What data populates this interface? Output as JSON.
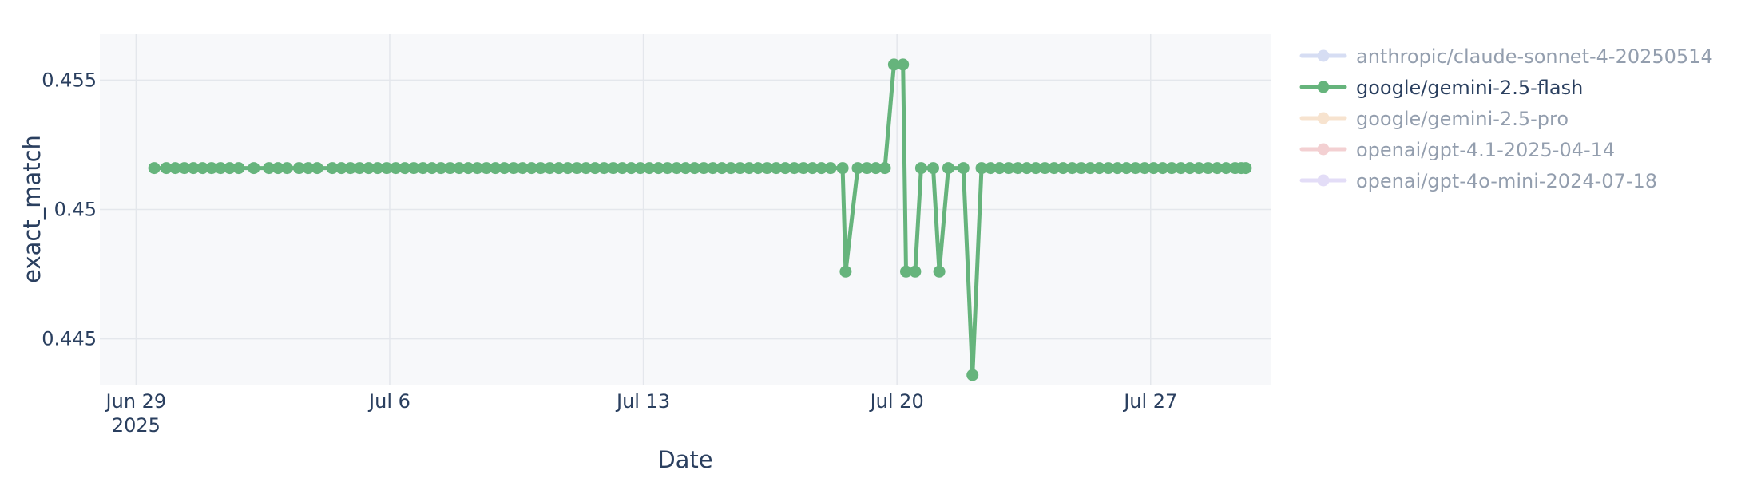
{
  "chart_data": {
    "type": "line",
    "xlabel": "Date",
    "ylabel": "exact_match",
    "xlim": [
      "2025-06-28T00:00",
      "2025-07-30T08:00"
    ],
    "ylim": [
      0.4432,
      0.4568
    ],
    "grid": true,
    "legend_position": "right",
    "x_ticks": [
      {
        "value": "2025-06-29",
        "label": "Jun 29",
        "sublabel": "2025"
      },
      {
        "value": "2025-07-06",
        "label": "Jul 6",
        "sublabel": ""
      },
      {
        "value": "2025-07-13",
        "label": "Jul 13",
        "sublabel": ""
      },
      {
        "value": "2025-07-20",
        "label": "Jul 20",
        "sublabel": ""
      },
      {
        "value": "2025-07-27",
        "label": "Jul 27",
        "sublabel": ""
      }
    ],
    "y_ticks": [
      {
        "value": 0.445,
        "label": "0.445"
      },
      {
        "value": 0.45,
        "label": "0.45"
      },
      {
        "value": 0.455,
        "label": "0.455"
      }
    ],
    "series": [
      {
        "name": "google/gemini-2.5-flash",
        "color": "#66b47c",
        "visible": true,
        "points": [
          {
            "x": "2025-06-29T12:00",
            "y": 0.4516
          },
          {
            "x": "2025-06-29T20:00",
            "y": 0.4516
          },
          {
            "x": "2025-06-30T02:00",
            "y": 0.4516
          },
          {
            "x": "2025-06-30T08:00",
            "y": 0.4516
          },
          {
            "x": "2025-06-30T14:00",
            "y": 0.4516
          },
          {
            "x": "2025-06-30T20:00",
            "y": 0.4516
          },
          {
            "x": "2025-07-01T02:00",
            "y": 0.4516
          },
          {
            "x": "2025-07-01T08:00",
            "y": 0.4516
          },
          {
            "x": "2025-07-01T14:00",
            "y": 0.4516
          },
          {
            "x": "2025-07-01T20:00",
            "y": 0.4516
          },
          {
            "x": "2025-07-02T06:00",
            "y": 0.4516
          },
          {
            "x": "2025-07-02T16:00",
            "y": 0.4516
          },
          {
            "x": "2025-07-02T22:00",
            "y": 0.4516
          },
          {
            "x": "2025-07-03T04:00",
            "y": 0.4516
          },
          {
            "x": "2025-07-03T12:00",
            "y": 0.4516
          },
          {
            "x": "2025-07-03T18:00",
            "y": 0.4516
          },
          {
            "x": "2025-07-04T00:00",
            "y": 0.4516
          },
          {
            "x": "2025-07-04T10:00",
            "y": 0.4516
          },
          {
            "x": "2025-07-04T16:00",
            "y": 0.4516
          },
          {
            "x": "2025-07-04T22:00",
            "y": 0.4516
          },
          {
            "x": "2025-07-05T04:00",
            "y": 0.4516
          },
          {
            "x": "2025-07-05T10:00",
            "y": 0.4516
          },
          {
            "x": "2025-07-05T16:00",
            "y": 0.4516
          },
          {
            "x": "2025-07-05T22:00",
            "y": 0.4516
          },
          {
            "x": "2025-07-06T04:00",
            "y": 0.4516
          },
          {
            "x": "2025-07-06T10:00",
            "y": 0.4516
          },
          {
            "x": "2025-07-06T16:00",
            "y": 0.4516
          },
          {
            "x": "2025-07-06T22:00",
            "y": 0.4516
          },
          {
            "x": "2025-07-07T04:00",
            "y": 0.4516
          },
          {
            "x": "2025-07-07T10:00",
            "y": 0.4516
          },
          {
            "x": "2025-07-07T16:00",
            "y": 0.4516
          },
          {
            "x": "2025-07-07T22:00",
            "y": 0.4516
          },
          {
            "x": "2025-07-08T04:00",
            "y": 0.4516
          },
          {
            "x": "2025-07-08T10:00",
            "y": 0.4516
          },
          {
            "x": "2025-07-08T16:00",
            "y": 0.4516
          },
          {
            "x": "2025-07-08T22:00",
            "y": 0.4516
          },
          {
            "x": "2025-07-09T04:00",
            "y": 0.4516
          },
          {
            "x": "2025-07-09T10:00",
            "y": 0.4516
          },
          {
            "x": "2025-07-09T16:00",
            "y": 0.4516
          },
          {
            "x": "2025-07-09T22:00",
            "y": 0.4516
          },
          {
            "x": "2025-07-10T04:00",
            "y": 0.4516
          },
          {
            "x": "2025-07-10T10:00",
            "y": 0.4516
          },
          {
            "x": "2025-07-10T16:00",
            "y": 0.4516
          },
          {
            "x": "2025-07-10T22:00",
            "y": 0.4516
          },
          {
            "x": "2025-07-11T04:00",
            "y": 0.4516
          },
          {
            "x": "2025-07-11T10:00",
            "y": 0.4516
          },
          {
            "x": "2025-07-11T16:00",
            "y": 0.4516
          },
          {
            "x": "2025-07-11T22:00",
            "y": 0.4516
          },
          {
            "x": "2025-07-12T04:00",
            "y": 0.4516
          },
          {
            "x": "2025-07-12T10:00",
            "y": 0.4516
          },
          {
            "x": "2025-07-12T16:00",
            "y": 0.4516
          },
          {
            "x": "2025-07-12T22:00",
            "y": 0.4516
          },
          {
            "x": "2025-07-13T04:00",
            "y": 0.4516
          },
          {
            "x": "2025-07-13T10:00",
            "y": 0.4516
          },
          {
            "x": "2025-07-13T16:00",
            "y": 0.4516
          },
          {
            "x": "2025-07-13T22:00",
            "y": 0.4516
          },
          {
            "x": "2025-07-14T04:00",
            "y": 0.4516
          },
          {
            "x": "2025-07-14T10:00",
            "y": 0.4516
          },
          {
            "x": "2025-07-14T16:00",
            "y": 0.4516
          },
          {
            "x": "2025-07-14T22:00",
            "y": 0.4516
          },
          {
            "x": "2025-07-15T04:00",
            "y": 0.4516
          },
          {
            "x": "2025-07-15T10:00",
            "y": 0.4516
          },
          {
            "x": "2025-07-15T16:00",
            "y": 0.4516
          },
          {
            "x": "2025-07-15T22:00",
            "y": 0.4516
          },
          {
            "x": "2025-07-16T04:00",
            "y": 0.4516
          },
          {
            "x": "2025-07-16T10:00",
            "y": 0.4516
          },
          {
            "x": "2025-07-16T16:00",
            "y": 0.4516
          },
          {
            "x": "2025-07-16T22:00",
            "y": 0.4516
          },
          {
            "x": "2025-07-17T04:00",
            "y": 0.4516
          },
          {
            "x": "2025-07-17T10:00",
            "y": 0.4516
          },
          {
            "x": "2025-07-17T16:00",
            "y": 0.4516
          },
          {
            "x": "2025-07-17T22:00",
            "y": 0.4516
          },
          {
            "x": "2025-07-18T04:00",
            "y": 0.4516
          },
          {
            "x": "2025-07-18T12:00",
            "y": 0.4516
          },
          {
            "x": "2025-07-18T14:00",
            "y": 0.4476
          },
          {
            "x": "2025-07-18T22:00",
            "y": 0.4516
          },
          {
            "x": "2025-07-19T04:00",
            "y": 0.4516
          },
          {
            "x": "2025-07-19T10:00",
            "y": 0.4516
          },
          {
            "x": "2025-07-19T16:00",
            "y": 0.4516
          },
          {
            "x": "2025-07-19T22:00",
            "y": 0.4556
          },
          {
            "x": "2025-07-20T04:00",
            "y": 0.4556
          },
          {
            "x": "2025-07-20T06:00",
            "y": 0.4476
          },
          {
            "x": "2025-07-20T12:00",
            "y": 0.4476
          },
          {
            "x": "2025-07-20T16:00",
            "y": 0.4516
          },
          {
            "x": "2025-07-21T00:00",
            "y": 0.4516
          },
          {
            "x": "2025-07-21T04:00",
            "y": 0.4476
          },
          {
            "x": "2025-07-21T10:00",
            "y": 0.4516
          },
          {
            "x": "2025-07-21T20:00",
            "y": 0.4516
          },
          {
            "x": "2025-07-22T02:00",
            "y": 0.4436
          },
          {
            "x": "2025-07-22T08:00",
            "y": 0.4516
          },
          {
            "x": "2025-07-22T14:00",
            "y": 0.4516
          },
          {
            "x": "2025-07-22T20:00",
            "y": 0.4516
          },
          {
            "x": "2025-07-23T02:00",
            "y": 0.4516
          },
          {
            "x": "2025-07-23T08:00",
            "y": 0.4516
          },
          {
            "x": "2025-07-23T14:00",
            "y": 0.4516
          },
          {
            "x": "2025-07-23T20:00",
            "y": 0.4516
          },
          {
            "x": "2025-07-24T02:00",
            "y": 0.4516
          },
          {
            "x": "2025-07-24T08:00",
            "y": 0.4516
          },
          {
            "x": "2025-07-24T14:00",
            "y": 0.4516
          },
          {
            "x": "2025-07-24T20:00",
            "y": 0.4516
          },
          {
            "x": "2025-07-25T02:00",
            "y": 0.4516
          },
          {
            "x": "2025-07-25T08:00",
            "y": 0.4516
          },
          {
            "x": "2025-07-25T14:00",
            "y": 0.4516
          },
          {
            "x": "2025-07-25T20:00",
            "y": 0.4516
          },
          {
            "x": "2025-07-26T02:00",
            "y": 0.4516
          },
          {
            "x": "2025-07-26T08:00",
            "y": 0.4516
          },
          {
            "x": "2025-07-26T14:00",
            "y": 0.4516
          },
          {
            "x": "2025-07-26T20:00",
            "y": 0.4516
          },
          {
            "x": "2025-07-27T02:00",
            "y": 0.4516
          },
          {
            "x": "2025-07-27T08:00",
            "y": 0.4516
          },
          {
            "x": "2025-07-27T14:00",
            "y": 0.4516
          },
          {
            "x": "2025-07-27T20:00",
            "y": 0.4516
          },
          {
            "x": "2025-07-28T02:00",
            "y": 0.4516
          },
          {
            "x": "2025-07-28T08:00",
            "y": 0.4516
          },
          {
            "x": "2025-07-28T14:00",
            "y": 0.4516
          },
          {
            "x": "2025-07-28T20:00",
            "y": 0.4516
          },
          {
            "x": "2025-07-29T02:00",
            "y": 0.4516
          },
          {
            "x": "2025-07-29T08:00",
            "y": 0.4516
          },
          {
            "x": "2025-07-29T12:00",
            "y": 0.4516
          },
          {
            "x": "2025-07-29T15:00",
            "y": 0.4516
          }
        ]
      }
    ],
    "legend": [
      {
        "name": "anthropic/claude-sonnet-4-20250514",
        "color": "#aebce8",
        "visible": false
      },
      {
        "name": "google/gemini-2.5-flash",
        "color": "#66b47c",
        "visible": true
      },
      {
        "name": "google/gemini-2.5-pro",
        "color": "#f0c9a0",
        "visible": false
      },
      {
        "name": "openai/gpt-4.1-2025-04-14",
        "color": "#e8a3a6",
        "visible": false
      },
      {
        "name": "openai/gpt-4o-mini-2024-07-18",
        "color": "#c9bdf0",
        "visible": false
      }
    ]
  }
}
